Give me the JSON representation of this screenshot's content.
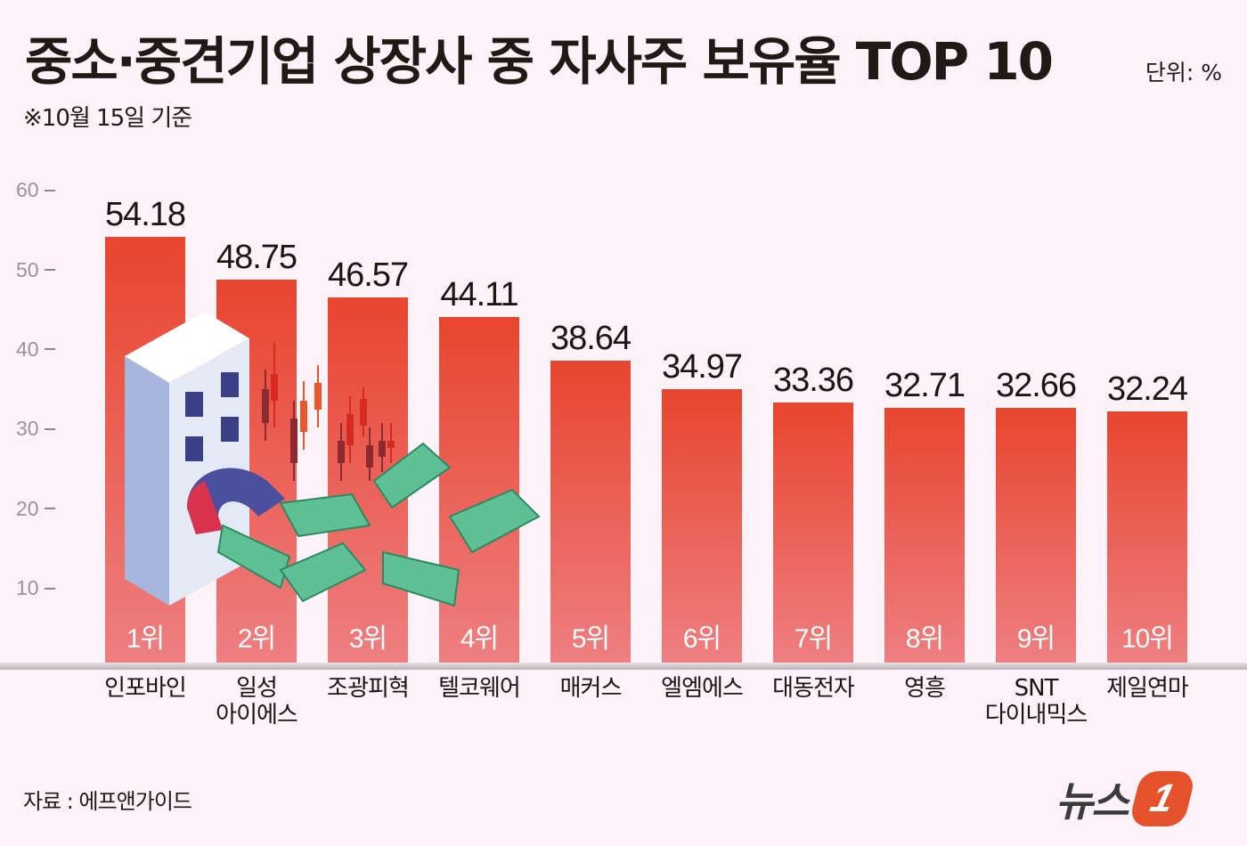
{
  "header": {
    "title": "중소·중견기업 상장사 중 자사주 보유율 TOP 10",
    "subtitle": "※10월 15일 기준",
    "unit": "단위: %"
  },
  "footer": {
    "source": "자료 : 에프앤가이드",
    "logo_text": "뉴스",
    "logo_badge": "1"
  },
  "colors": {
    "background": "#fcf2f7",
    "bar_top": "#e8452e",
    "bar_bottom": "#ee7f82",
    "logo_accent": "#e5512a"
  },
  "illustration": {
    "icons": [
      "building-icon",
      "magnet-icon",
      "candlestick-chart-icon",
      "banknote-icon"
    ]
  },
  "chart_data": {
    "type": "bar",
    "title": "중소·중견기업 상장사 중 자사주 보유율 TOP 10",
    "subtitle": "※10월 15일 기준",
    "unit": "%",
    "xlabel": "",
    "ylabel": "",
    "ylim": [
      0,
      60
    ],
    "yticks": [
      10,
      20,
      30,
      40,
      50,
      60
    ],
    "grid": false,
    "legend": null,
    "categories": [
      "인포바인",
      "일성 아이에스",
      "조광피혁",
      "텔코웨어",
      "매커스",
      "엘엠에스",
      "대동전자",
      "영흥",
      "SNT 다이내믹스",
      "제일연마"
    ],
    "category_lines": [
      [
        "인포바인"
      ],
      [
        "일성",
        "아이에스"
      ],
      [
        "조광피혁"
      ],
      [
        "텔코웨어"
      ],
      [
        "매커스"
      ],
      [
        "엘엠에스"
      ],
      [
        "대동전자"
      ],
      [
        "영흥"
      ],
      [
        "SNT",
        "다이내믹스"
      ],
      [
        "제일연마"
      ]
    ],
    "ranks": [
      "1위",
      "2위",
      "3위",
      "4위",
      "5위",
      "6위",
      "7위",
      "8위",
      "9위",
      "10위"
    ],
    "values": [
      54.18,
      48.75,
      46.57,
      44.11,
      38.64,
      34.97,
      33.36,
      32.71,
      32.66,
      32.24
    ],
    "value_labels": [
      "54.18",
      "48.75",
      "46.57",
      "44.11",
      "38.64",
      "34.97",
      "33.36",
      "32.71",
      "32.66",
      "32.24"
    ],
    "source": "에프앤가이드"
  }
}
